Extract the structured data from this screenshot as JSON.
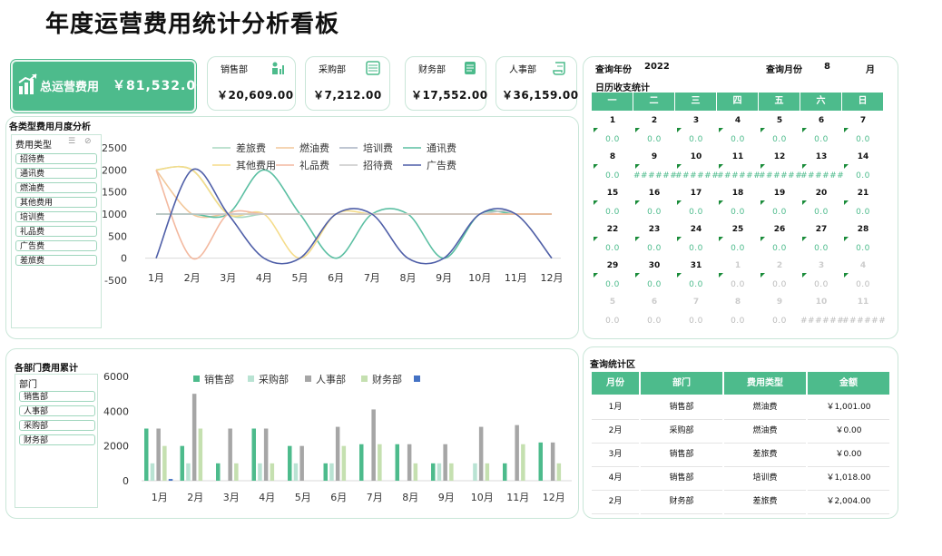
{
  "title": "年度运营费用统计分析看板",
  "total": {
    "label": "总运营费用",
    "value": "￥81,532.00",
    "icon": "bar-chart-up-icon"
  },
  "departments": [
    {
      "name": "销售部",
      "value": "￥20,609.00",
      "icon": "people-chart-icon"
    },
    {
      "name": "采购部",
      "value": "￥7,212.00",
      "icon": "calculator-icon"
    },
    {
      "name": "财务部",
      "value": "￥17,552.00",
      "icon": "document-icon"
    },
    {
      "name": "人事部",
      "value": "￥36,159.00",
      "icon": "scroll-icon"
    }
  ],
  "monthly_section": {
    "title": "各类型费用月度分析",
    "slicer_header": "费用类型",
    "slicer_items": [
      "招待费",
      "通讯费",
      "燃油费",
      "其他费用",
      "培训费",
      "礼品费",
      "广告费",
      "差旅费"
    ]
  },
  "dept_section": {
    "title": "各部门费用累计",
    "slicer_header": "部门",
    "slicer_items": [
      "销售部",
      "人事部",
      "采购部",
      "财务部"
    ]
  },
  "calendar": {
    "year_label": "查询年份",
    "year": "2022",
    "month_label": "查询月份",
    "month": "8",
    "month_unit": "月",
    "title": "日历收支统计",
    "weekdays": [
      "一",
      "二",
      "三",
      "四",
      "五",
      "六",
      "日"
    ],
    "rows": [
      {
        "days": [
          "1",
          "2",
          "3",
          "4",
          "5",
          "6",
          "7"
        ],
        "values": [
          "0.0",
          "0.0",
          "0.0",
          "0.0",
          "0.0",
          "0.0",
          "0.0"
        ],
        "gray": [
          false,
          false,
          false,
          false,
          false,
          false,
          false
        ]
      },
      {
        "days": [
          "8",
          "9",
          "10",
          "11",
          "12",
          "13",
          "14"
        ],
        "values": [
          "0.0",
          "######",
          "######",
          "######",
          "######",
          "######",
          "0.0"
        ],
        "gray": [
          false,
          false,
          false,
          false,
          false,
          false,
          false
        ]
      },
      {
        "days": [
          "15",
          "16",
          "17",
          "18",
          "19",
          "20",
          "21"
        ],
        "values": [
          "0.0",
          "0.0",
          "0.0",
          "0.0",
          "0.0",
          "0.0",
          "0.0"
        ],
        "gray": [
          false,
          false,
          false,
          false,
          false,
          false,
          false
        ]
      },
      {
        "days": [
          "22",
          "23",
          "24",
          "25",
          "26",
          "27",
          "28"
        ],
        "values": [
          "0.0",
          "0.0",
          "0.0",
          "0.0",
          "0.0",
          "0.0",
          "0.0"
        ],
        "gray": [
          false,
          false,
          false,
          false,
          false,
          false,
          false
        ]
      },
      {
        "days": [
          "29",
          "30",
          "31",
          "1",
          "2",
          "3",
          "4"
        ],
        "values": [
          "0.0",
          "0.0",
          "0.0",
          "0.0",
          "0.0",
          "0.0",
          "0.0"
        ],
        "gray": [
          false,
          false,
          false,
          true,
          true,
          true,
          true
        ]
      },
      {
        "days": [
          "5",
          "6",
          "7",
          "8",
          "9",
          "10",
          "11"
        ],
        "values": [
          "0.0",
          "0.0",
          "0.0",
          "0.0",
          "0.0",
          "######",
          "######"
        ],
        "gray": [
          true,
          true,
          true,
          true,
          true,
          true,
          true
        ]
      }
    ]
  },
  "query": {
    "title": "查询统计区",
    "headers": [
      "月份",
      "部门",
      "费用类型",
      "金额"
    ],
    "rows": [
      [
        "1月",
        "销售部",
        "燃油费",
        "￥1,001.00"
      ],
      [
        "2月",
        "采购部",
        "燃油费",
        "￥0.00"
      ],
      [
        "3月",
        "销售部",
        "差旅费",
        "￥0.00"
      ],
      [
        "4月",
        "销售部",
        "培训费",
        "￥1,018.00"
      ],
      [
        "2月",
        "财务部",
        "差旅费",
        "￥2,004.00"
      ]
    ]
  },
  "chart_data": [
    {
      "type": "line",
      "categories": [
        "1月",
        "2月",
        "3月",
        "4月",
        "5月",
        "6月",
        "7月",
        "8月",
        "9月",
        "10月",
        "11月",
        "12月"
      ],
      "ylim": [
        -500,
        2500
      ],
      "yticks": [
        2500,
        2000,
        1500,
        1000,
        500,
        0,
        -500
      ],
      "legend_position": "top",
      "series": [
        {
          "name": "差旅费",
          "color": "#a8d8c0",
          "values": [
            2000,
            2000,
            1000,
            1000,
            1000,
            1000,
            1000,
            1000,
            1000,
            1000,
            1000,
            1000
          ]
        },
        {
          "name": "燃油费",
          "color": "#f2c79a",
          "values": [
            2000,
            1000,
            1000,
            1000,
            1000,
            1000,
            1000,
            1000,
            1000,
            1000,
            1000,
            1000
          ]
        },
        {
          "name": "培训费",
          "color": "#aab4c4",
          "values": [
            1000,
            1000,
            1000,
            1000,
            1000,
            1000,
            1000,
            1000,
            1000,
            1000,
            1000,
            1000
          ]
        },
        {
          "name": "通讯费",
          "color": "#5bbfa2",
          "values": [
            1000,
            1000,
            1000,
            2000,
            1000,
            0,
            1000,
            1000,
            0,
            1000,
            1000,
            1000
          ]
        },
        {
          "name": "其他费用",
          "color": "#f5dc8a",
          "values": [
            2000,
            2000,
            1000,
            1000,
            0,
            1000,
            1000,
            1000,
            1000,
            1000,
            1000,
            1000
          ]
        },
        {
          "name": "礼品费",
          "color": "#f3b9a0",
          "values": [
            2000,
            0,
            1000,
            1000,
            1000,
            1000,
            1000,
            1000,
            1000,
            1000,
            1000,
            1000
          ]
        },
        {
          "name": "招待费",
          "color": "#c9c9c9",
          "values": [
            1000,
            1000,
            1000,
            1000,
            1000,
            1000,
            1000,
            1000,
            1000,
            1000,
            1000,
            0
          ]
        },
        {
          "name": "广告费",
          "color": "#4f5fa8",
          "values": [
            0,
            2000,
            1000,
            0,
            0,
            1000,
            1000,
            0,
            0,
            1000,
            1000,
            0
          ]
        }
      ]
    },
    {
      "type": "bar",
      "categories": [
        "1月",
        "2月",
        "3月",
        "4月",
        "5月",
        "6月",
        "7月",
        "8月",
        "9月",
        "10月",
        "11月",
        "12月"
      ],
      "ylim": [
        0,
        6000
      ],
      "yticks": [
        6000,
        4000,
        2000,
        0
      ],
      "legend_position": "top",
      "series": [
        {
          "name": "销售部",
          "color": "#4dbb8c",
          "values": [
            3000,
            2000,
            1000,
            3000,
            2000,
            1000,
            2100,
            2100,
            1000,
            0,
            1000,
            2200
          ]
        },
        {
          "name": "采购部",
          "color": "#b9e3d3",
          "values": [
            1000,
            1000,
            0,
            1000,
            1000,
            1000,
            0,
            0,
            1000,
            1000,
            0,
            0
          ]
        },
        {
          "name": "人事部",
          "color": "#a6a6a6",
          "values": [
            3000,
            5000,
            3000,
            3000,
            2000,
            3100,
            4100,
            2100,
            2100,
            3100,
            3200,
            2200
          ]
        },
        {
          "name": "财务部",
          "color": "#c5e0b0",
          "values": [
            2000,
            3000,
            1000,
            1000,
            0,
            2000,
            2100,
            1000,
            1000,
            1000,
            2100,
            1000
          ]
        },
        {
          "name": "",
          "color": "#4472c4",
          "values": [
            100,
            0,
            0,
            0,
            0,
            0,
            0,
            0,
            0,
            0,
            0,
            0
          ]
        }
      ]
    }
  ]
}
